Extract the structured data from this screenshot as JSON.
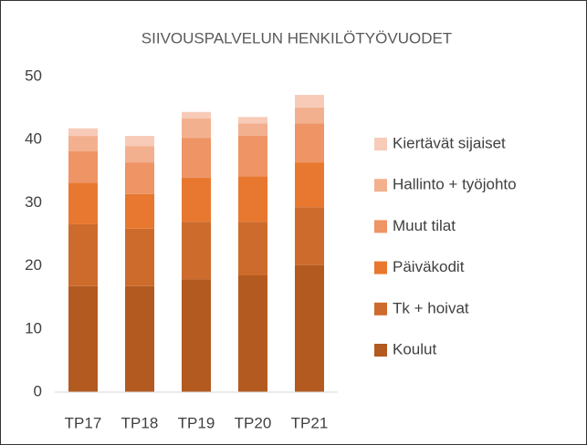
{
  "chart_data": {
    "type": "stacked_bar",
    "title": "SIIVOUSPALVELUN HENKILÖTYÖVUODET",
    "categories": [
      "TP17",
      "TP18",
      "TP19",
      "TP20",
      "TP21"
    ],
    "series": [
      {
        "name": "Koulut",
        "color": "#b35a21",
        "values": [
          16.8,
          16.8,
          17.9,
          18.5,
          20.1
        ]
      },
      {
        "name": "Tk + hoivat",
        "color": "#cd6b2c",
        "values": [
          9.8,
          9.1,
          9.1,
          8.5,
          9.2
        ]
      },
      {
        "name": "Päiväkodit",
        "color": "#e8782f",
        "values": [
          6.6,
          5.5,
          7.0,
          7.2,
          7.1
        ]
      },
      {
        "name": "Muut tilat",
        "color": "#ee9465",
        "values": [
          5.0,
          5.0,
          6.3,
          6.4,
          6.2
        ]
      },
      {
        "name": "Hallinto + työjohto",
        "color": "#f3b08f",
        "values": [
          2.4,
          2.6,
          3.1,
          2.0,
          2.5
        ]
      },
      {
        "name": "Kiertävät sijaiset",
        "color": "#f7cbb8",
        "values": [
          1.2,
          1.6,
          1.0,
          1.0,
          2.0
        ]
      }
    ],
    "ylim": [
      0,
      50
    ],
    "yticks": [
      0,
      10,
      20,
      30,
      40,
      50
    ],
    "grid": false,
    "legend": "right"
  }
}
